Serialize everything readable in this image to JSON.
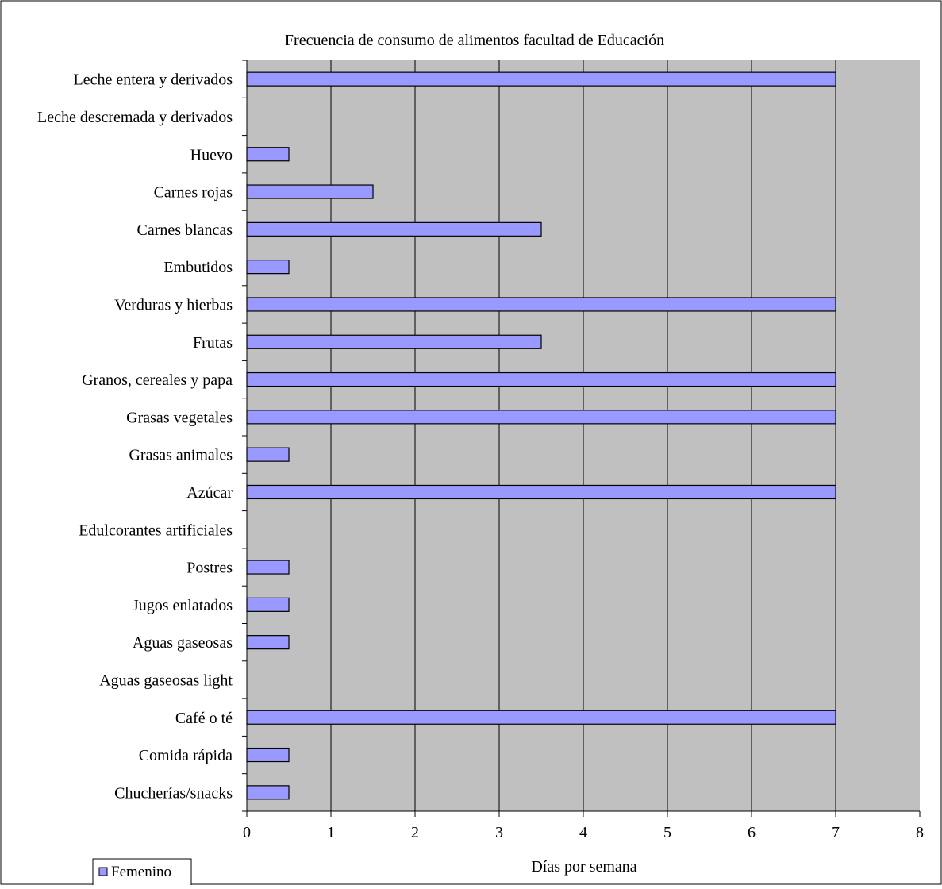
{
  "chart_data": {
    "type": "bar",
    "orientation": "horizontal",
    "title": "Frecuencia de consumo de alimentos facultad de Educación",
    "xlabel": "Días por semana",
    "ylabel": "",
    "xlim": [
      0,
      8
    ],
    "x_ticks": [
      "0",
      "1",
      "2",
      "3",
      "4",
      "5",
      "6",
      "7",
      "8"
    ],
    "grid": true,
    "legend_position": "bottom-left",
    "categories": [
      "Leche entera y derivados",
      "Leche descremada y derivados",
      "Huevo",
      "Carnes rojas",
      "Carnes blancas",
      "Embutidos",
      "Verduras y hierbas",
      "Frutas",
      "Granos, cereales y papa",
      "Grasas vegetales",
      "Grasas animales",
      "Azúcar",
      "Edulcorantes artificiales",
      "Postres",
      "Jugos enlatados",
      "Aguas gaseosas",
      "Aguas gaseosas light",
      "Café o té",
      "Comida rápida",
      "Chucherías/snacks"
    ],
    "series": [
      {
        "name": "Femenino",
        "color": "#9999ff",
        "values": [
          7,
          0,
          0.5,
          1.5,
          3.5,
          0.5,
          7,
          3.5,
          7,
          7,
          0.5,
          7,
          0,
          0.5,
          0.5,
          0.5,
          0,
          7,
          0.5,
          0.5
        ]
      }
    ],
    "colors": {
      "plot_background": "#c0c0c0",
      "bar_fill": "#9999ff",
      "bar_stroke": "#000000",
      "gridline": "#000000"
    }
  }
}
